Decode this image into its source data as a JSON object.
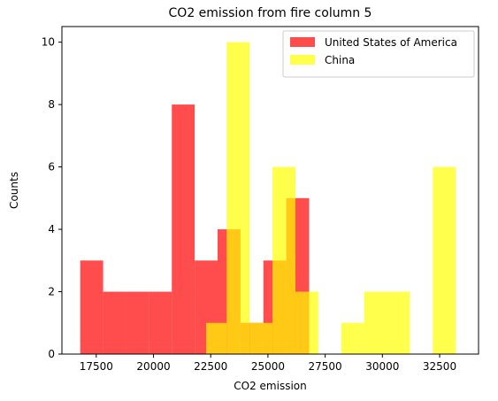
{
  "chart_data": {
    "type": "histogram",
    "title": "CO2 emission from fire column 5",
    "xlabel": "CO2 emission",
    "ylabel": "Counts",
    "xlim": [
      16000,
      34200
    ],
    "ylim": [
      0,
      10.5
    ],
    "xticks": [
      17500,
      20000,
      22500,
      25000,
      27500,
      30000,
      32500
    ],
    "yticks": [
      0,
      2,
      4,
      6,
      8,
      10
    ],
    "legend_position": "upper right",
    "series": [
      {
        "name": "United States of America",
        "color": "#ff0000",
        "alpha": 0.7,
        "bins": [
          {
            "x0": 16800,
            "x1": 17800,
            "count": 3
          },
          {
            "x0": 17800,
            "x1": 18800,
            "count": 2
          },
          {
            "x0": 18800,
            "x1": 19800,
            "count": 2
          },
          {
            "x0": 19800,
            "x1": 20800,
            "count": 2
          },
          {
            "x0": 20800,
            "x1": 21800,
            "count": 8
          },
          {
            "x0": 21800,
            "x1": 22800,
            "count": 3
          },
          {
            "x0": 22800,
            "x1": 23800,
            "count": 4
          },
          {
            "x0": 23800,
            "x1": 24800,
            "count": 1
          },
          {
            "x0": 24800,
            "x1": 25800,
            "count": 3
          },
          {
            "x0": 25800,
            "x1": 26800,
            "count": 5
          }
        ]
      },
      {
        "name": "China",
        "color": "#ffff00",
        "alpha": 0.7,
        "bins": [
          {
            "x0": 22300,
            "x1": 23200,
            "count": 1
          },
          {
            "x0": 23200,
            "x1": 24200,
            "count": 10
          },
          {
            "x0": 24200,
            "x1": 25200,
            "count": 1
          },
          {
            "x0": 25200,
            "x1": 26200,
            "count": 6
          },
          {
            "x0": 26200,
            "x1": 27200,
            "count": 2
          },
          {
            "x0": 27200,
            "x1": 28200,
            "count": 0
          },
          {
            "x0": 28200,
            "x1": 29200,
            "count": 1
          },
          {
            "x0": 29200,
            "x1": 30200,
            "count": 2
          },
          {
            "x0": 30200,
            "x1": 31200,
            "count": 2
          },
          {
            "x0": 31200,
            "x1": 32200,
            "count": 0
          },
          {
            "x0": 32200,
            "x1": 33200,
            "count": 6
          }
        ]
      }
    ]
  }
}
